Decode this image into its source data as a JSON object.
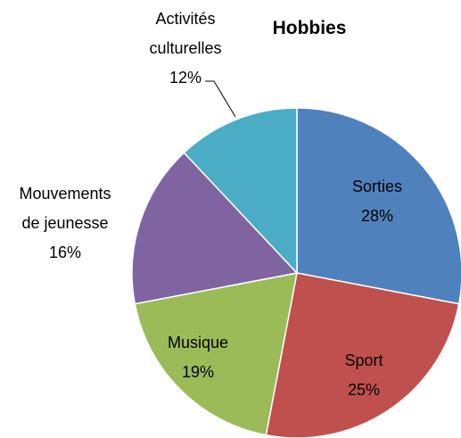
{
  "chart_data": {
    "type": "pie",
    "title": "Hobbies",
    "categories": [
      "Sorties",
      "Sport",
      "Musique",
      "Mouvements de jeunesse",
      "Activités culturelles"
    ],
    "values": [
      28,
      25,
      19,
      16,
      12
    ],
    "value_labels": [
      "28%",
      "25%",
      "19%",
      "16%",
      "12%"
    ],
    "colors": [
      "#4f81bd",
      "#c0504d",
      "#9bbb59",
      "#8064a2",
      "#4bacc6"
    ]
  }
}
